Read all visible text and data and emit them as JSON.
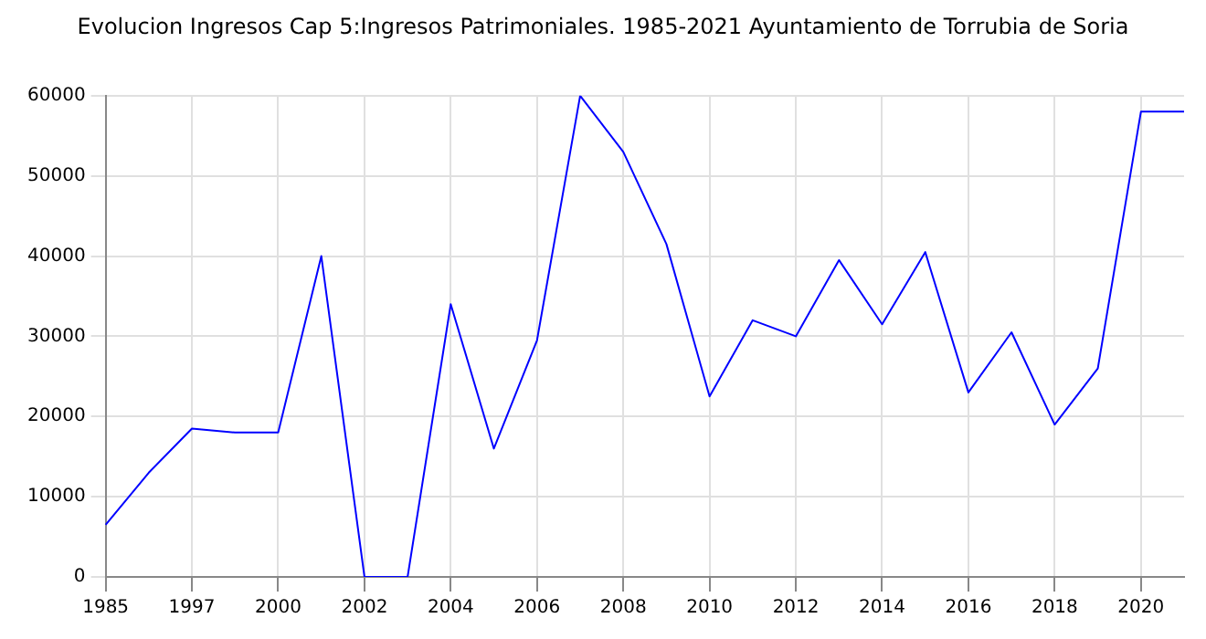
{
  "chart_data": {
    "type": "line",
    "title": "Evolucion Ingresos Cap 5:Ingresos Patrimoniales. 1985-2021 Ayuntamiento de Torrubia de Soria",
    "categories": [
      "1985",
      null,
      "1997",
      null,
      "2000",
      null,
      "2002",
      null,
      "2004",
      null,
      "2006",
      null,
      "2008",
      null,
      "2010",
      null,
      "2012",
      null,
      "2014",
      null,
      "2016",
      null,
      "2018",
      null,
      "2020",
      null
    ],
    "series": [
      {
        "color": "#0000ff",
        "values": [
          6500,
          13000,
          18500,
          18000,
          18000,
          40000,
          0,
          0,
          34000,
          16000,
          29500,
          60000,
          53000,
          41500,
          22500,
          32000,
          30000,
          39500,
          31500,
          40500,
          23000,
          30500,
          19000,
          26000,
          58000,
          58000
        ]
      }
    ],
    "ylim": [
      0,
      60000
    ],
    "yticks": [
      0,
      10000,
      20000,
      30000,
      40000,
      50000,
      60000
    ],
    "grid": true,
    "legend": false,
    "marker": "none",
    "line_style": "solid"
  }
}
